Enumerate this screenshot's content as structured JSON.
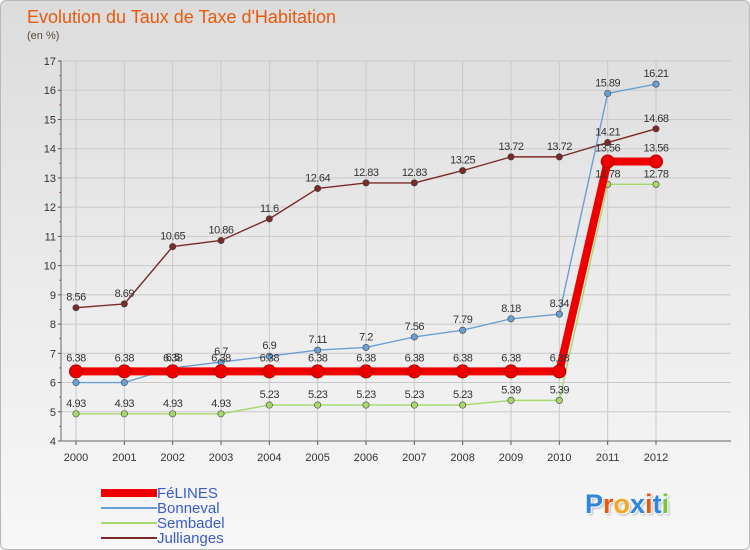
{
  "header": {
    "title": "Evolution du Taux de Taxe d'Habitation",
    "unit": "(en %)"
  },
  "colors": {
    "title": "#e8590c",
    "legend_text": "#3a5cc8"
  },
  "logo": {
    "text": "Proxiti",
    "letter_colors": [
      "#2e86de",
      "#e8590c",
      "#f5a623",
      "#2e86de",
      "#e8590c",
      "#2e86de",
      "#7cc242"
    ]
  },
  "chart_data": {
    "type": "line",
    "title": "Evolution du Taux de Taxe d'Habitation",
    "ylabel": "(en %)",
    "xlabel": "",
    "ylim": [
      4,
      17
    ],
    "yticks": [
      4,
      5,
      6,
      7,
      8,
      9,
      10,
      11,
      12,
      13,
      14,
      15,
      16,
      17
    ],
    "categories": [
      "2000",
      "2001",
      "2002",
      "2003",
      "2004",
      "2005",
      "2006",
      "2007",
      "2008",
      "2009",
      "2010",
      "2011",
      "2012"
    ],
    "grid": true,
    "legend_position": "bottom-left",
    "series": [
      {
        "name": "FéLINES",
        "color": "#ee0000",
        "values": [
          6.38,
          6.38,
          6.38,
          6.38,
          6.38,
          6.38,
          6.38,
          6.38,
          6.38,
          6.38,
          6.38,
          13.56,
          13.56
        ],
        "labels": [
          "6.38",
          "6.38",
          "6.38",
          "6.38",
          "6.38",
          "6.38",
          "6.38",
          "6.38",
          "6.38",
          "6.38",
          "6.38",
          "13.56",
          "13.56"
        ]
      },
      {
        "name": "Bonneval",
        "color": "#6a9fd4",
        "values": [
          6.0,
          6.0,
          6.5,
          6.7,
          6.9,
          7.11,
          7.2,
          7.56,
          7.79,
          8.18,
          8.34,
          15.89,
          16.21
        ],
        "labels": [
          "",
          "",
          "6.5",
          "6.7",
          "6.9",
          "7.11",
          "7.2",
          "7.56",
          "7.79",
          "8.18",
          "8.34",
          "15.89",
          "16.21"
        ]
      },
      {
        "name": "Sembadel",
        "color": "#a6d96a",
        "values": [
          4.93,
          4.93,
          4.93,
          4.93,
          5.23,
          5.23,
          5.23,
          5.23,
          5.23,
          5.39,
          5.39,
          12.78,
          12.78
        ],
        "labels": [
          "4.93",
          "4.93",
          "4.93",
          "4.93",
          "5.23",
          "5.23",
          "5.23",
          "5.23",
          "5.23",
          "5.39",
          "5.39",
          "12.78",
          "12.78"
        ]
      },
      {
        "name": "Jullianges",
        "color": "#7a2a2a",
        "values": [
          8.56,
          8.69,
          10.65,
          10.86,
          11.6,
          12.64,
          12.83,
          12.83,
          13.25,
          13.72,
          13.72,
          14.21,
          14.68
        ],
        "labels": [
          "8.56",
          "8.69",
          "10.65",
          "10.86",
          "11.6",
          "12.64",
          "12.83",
          "12.83",
          "13.25",
          "13.72",
          "13.72",
          "14.21",
          "14.68"
        ]
      }
    ]
  }
}
